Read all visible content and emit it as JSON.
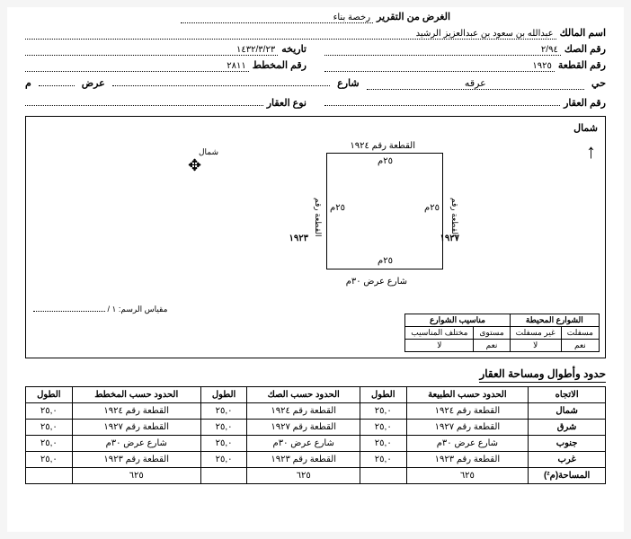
{
  "purpose": {
    "label": "الغرض من التقرير",
    "value": "رخصة بناء"
  },
  "owner": {
    "label": "اسم المالك",
    "value": "عبدالله بن سعود بن عبدالعزيز الرشيد"
  },
  "deed": {
    "label": "رقم الصك",
    "value": "٢/٩٤",
    "dateLabel": "تاريخه",
    "dateValue": "١٤٣٢/٣/٢٣"
  },
  "parcel": {
    "label": "رقم القطعة",
    "value": "١٩٢٥",
    "planLabel": "رقم المخطط",
    "planValue": "٢٨١١"
  },
  "streetRow": {
    "district": "حي",
    "districtVal": "عرقه",
    "street": "شارع",
    "width": "عرض",
    "m": "م"
  },
  "prop": {
    "noLabel": "رقم العقار",
    "typeLabel": "نوع العقار"
  },
  "diagram": {
    "north": "شمال",
    "compassLabel": "شمال",
    "topPlot": "القطعة رقم ١٩٢٤",
    "dim": "٢٥م",
    "rightPlotLabel": "القطعة رقم",
    "rightPlotNo": "١٩٢٧",
    "leftPlotLabel": "القطعة رقم",
    "leftPlotNo": "١٩٢٣",
    "bottomStreet": "شارع عرض ٣٠م",
    "scale": "مقياس الرسم: ١ /"
  },
  "stTable": {
    "h1": "الشوارع المحيطة",
    "h2": "مناسيب الشوارع",
    "sub": [
      "مسفلت",
      "غير مسفلت",
      "مستوى",
      "مختلف المناسيب"
    ],
    "row": [
      "نعم",
      "لا",
      "نعم",
      "لا"
    ]
  },
  "boundsTitle": "حدود وأطوال ومساحة العقار",
  "bounds": {
    "headers": [
      "الاتجاه",
      "الحدود حسب الطبيعة",
      "الطول",
      "الحدود حسب الصك",
      "الطول",
      "الحدود حسب المخطط",
      "الطول"
    ],
    "rows": [
      [
        "شمال",
        "القطعة رقم ١٩٢٤",
        "٢٥,٠",
        "القطعة رقم ١٩٢٤",
        "٢٥,٠",
        "القطعة رقم ١٩٢٤",
        "٢٥,٠"
      ],
      [
        "شرق",
        "القطعة رقم ١٩٢٧",
        "٢٥,٠",
        "القطعة رقم ١٩٢٧",
        "٢٥,٠",
        "القطعة رقم ١٩٢٧",
        "٢٥,٠"
      ],
      [
        "جنوب",
        "شارع عرض ٣٠م",
        "٢٥,٠",
        "شارع عرض ٣٠م",
        "٢٥,٠",
        "شارع عرض ٣٠م",
        "٢٥,٠"
      ],
      [
        "غرب",
        "القطعة رقم ١٩٢٣",
        "٢٥,٠",
        "القطعة رقم ١٩٢٣",
        "٢٥,٠",
        "القطعة رقم ١٩٢٣",
        "٢٥,٠"
      ],
      [
        "المساحة(م²)",
        "٦٢٥",
        "",
        "٦٢٥",
        "",
        "٦٢٥",
        ""
      ]
    ]
  }
}
